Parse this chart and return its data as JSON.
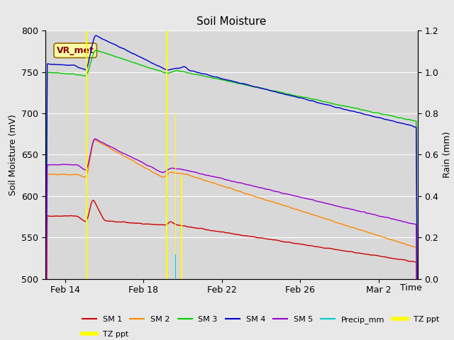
{
  "title": "Soil Moisture",
  "xlabel": "Time",
  "ylabel_left": "Soil Moisture (mV)",
  "ylabel_right": "Rain (mm)",
  "ylim_left": [
    500,
    800
  ],
  "ylim_right": [
    0.0,
    1.2
  ],
  "fig_bg_color": "#e8e8e8",
  "plot_bg_color": "#d8d8d8",
  "grid_color": "#ffffff",
  "annotation_text": "VR_met",
  "annotation_box_color": "#ffffaa",
  "annotation_text_color": "#880000",
  "sm1_color": "#cc0000",
  "sm2_color": "#ff8800",
  "sm3_color": "#00cc00",
  "sm4_color": "#0000cc",
  "sm5_color": "#9900cc",
  "precip_color": "#00cccc",
  "tz_ppt_color": "#ffff00",
  "x_tick_labels": [
    "Feb 14",
    "Feb 18",
    "Feb 22",
    "Feb 26",
    "Mar 2"
  ],
  "yticks_left": [
    500,
    550,
    600,
    650,
    700,
    750,
    800
  ],
  "yticks_right": [
    0.0,
    0.2,
    0.4,
    0.6,
    0.8,
    1.0,
    1.2
  ],
  "rain_spike1_day": 2.1,
  "rain_spike2_day": 6.2,
  "rain_spike3_day": 6.65,
  "rain_spike4_day": 6.95,
  "total_days": 19.0,
  "n_points": 1000
}
